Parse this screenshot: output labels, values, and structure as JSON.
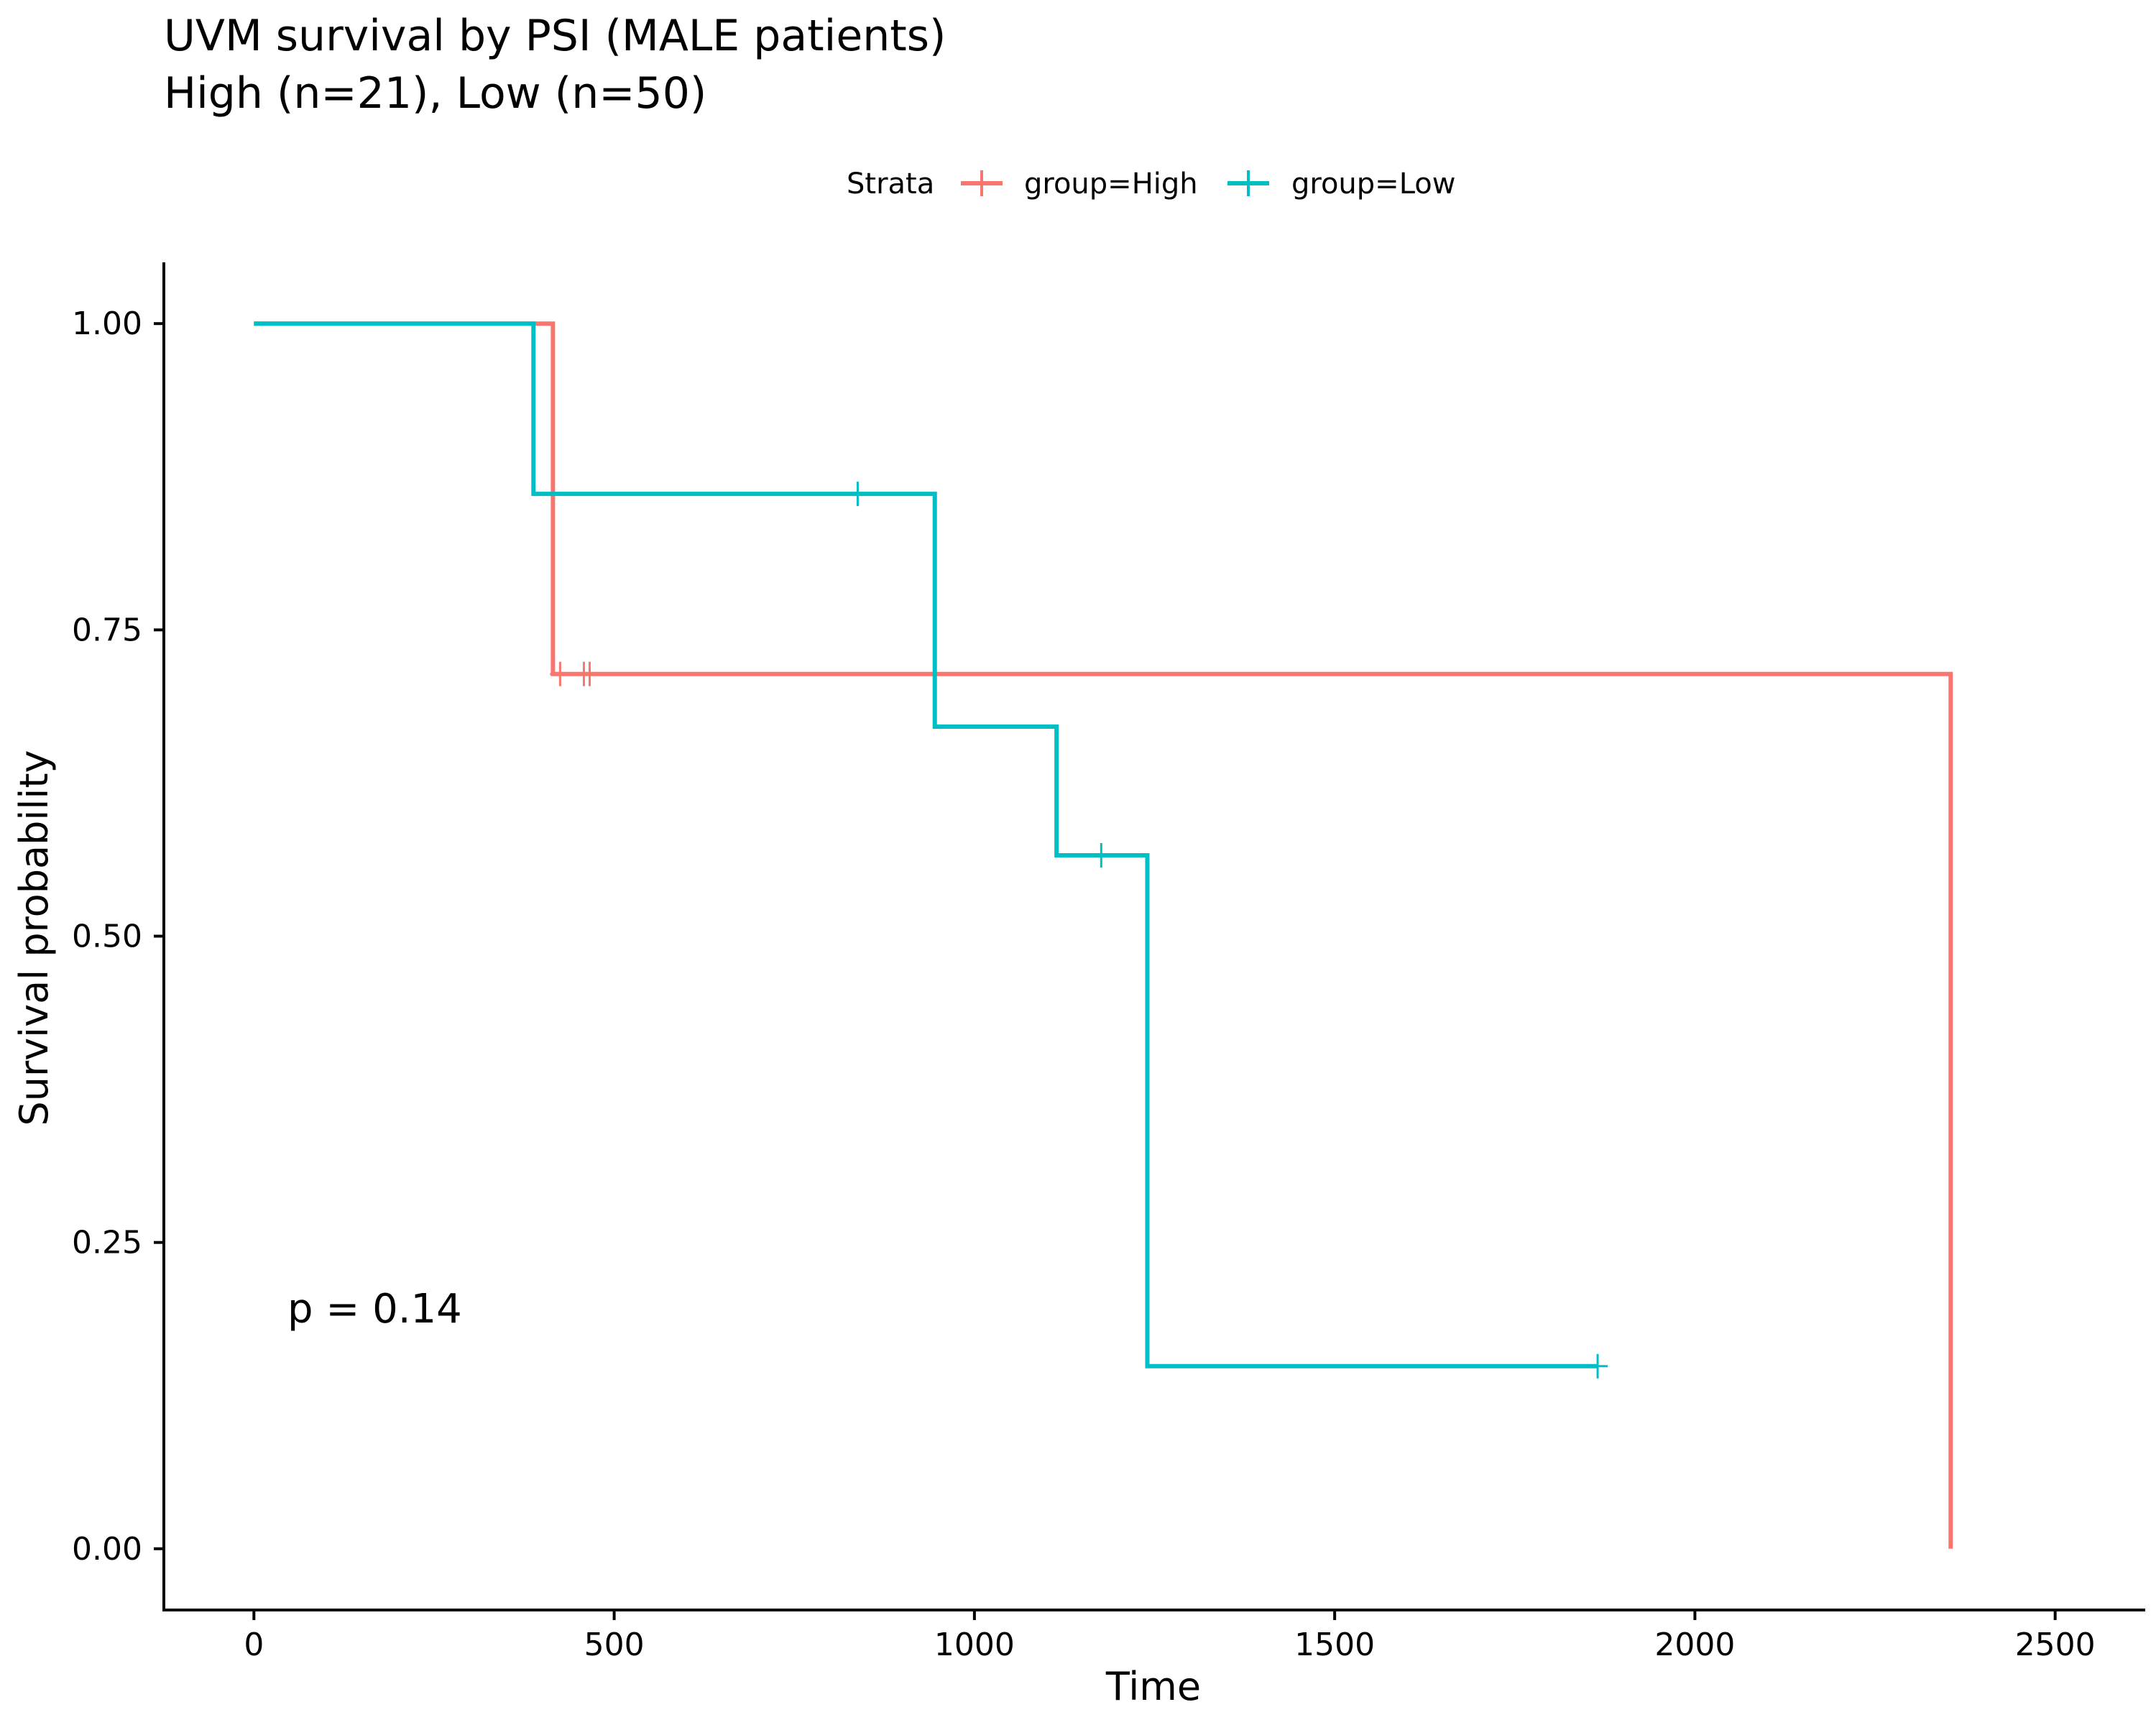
{
  "title_line1": "UVM survival by PSI (MALE patients)",
  "title_line2": "High (n=21), Low (n=50)",
  "legend": {
    "title": "Strata",
    "items": [
      "group=High",
      "group=Low"
    ]
  },
  "p_value_label": "p = 0.14",
  "colors": {
    "high": "#F8766D",
    "low": "#00BFC4"
  },
  "chart_data": {
    "type": "line",
    "subtype": "kaplan-meier",
    "title": "UVM survival by PSI (MALE patients)\nHigh (n=21), Low (n=50)",
    "xlabel": "Time",
    "ylabel": "Survival probability",
    "xlim": [
      -125,
      2625
    ],
    "ylim": [
      -0.05,
      1.05
    ],
    "xticks": [
      0,
      500,
      1000,
      1500,
      2000,
      2500
    ],
    "xtick_labels": [
      "0",
      "500",
      "1000",
      "1500",
      "2000",
      "2500"
    ],
    "yticks": [
      0,
      0.25,
      0.5,
      0.75,
      1.0
    ],
    "ytick_labels": [
      "0.00",
      "0.25",
      "0.50",
      "0.75",
      "1.00"
    ],
    "grid": false,
    "legend_position": "top",
    "series": [
      {
        "name": "group=High",
        "color": "#F8766D",
        "steps": [
          {
            "x": 0,
            "y": 1.0
          },
          {
            "x": 415,
            "y": 0.714
          },
          {
            "x": 2355,
            "y": 0.0
          }
        ],
        "censor": [
          {
            "x": 425,
            "y": 0.714
          },
          {
            "x": 458,
            "y": 0.714
          },
          {
            "x": 466,
            "y": 0.714
          }
        ]
      },
      {
        "name": "group=Low",
        "color": "#00BFC4",
        "steps": [
          {
            "x": 0,
            "y": 1.0
          },
          {
            "x": 388,
            "y": 0.861
          },
          {
            "x": 945,
            "y": 0.671
          },
          {
            "x": 1114,
            "y": 0.566
          },
          {
            "x": 1240,
            "y": 0.149
          }
        ],
        "end_x": 1865,
        "censor": [
          {
            "x": 838,
            "y": 0.861
          },
          {
            "x": 1176,
            "y": 0.566
          },
          {
            "x": 1865,
            "y": 0.149
          }
        ]
      }
    ]
  }
}
